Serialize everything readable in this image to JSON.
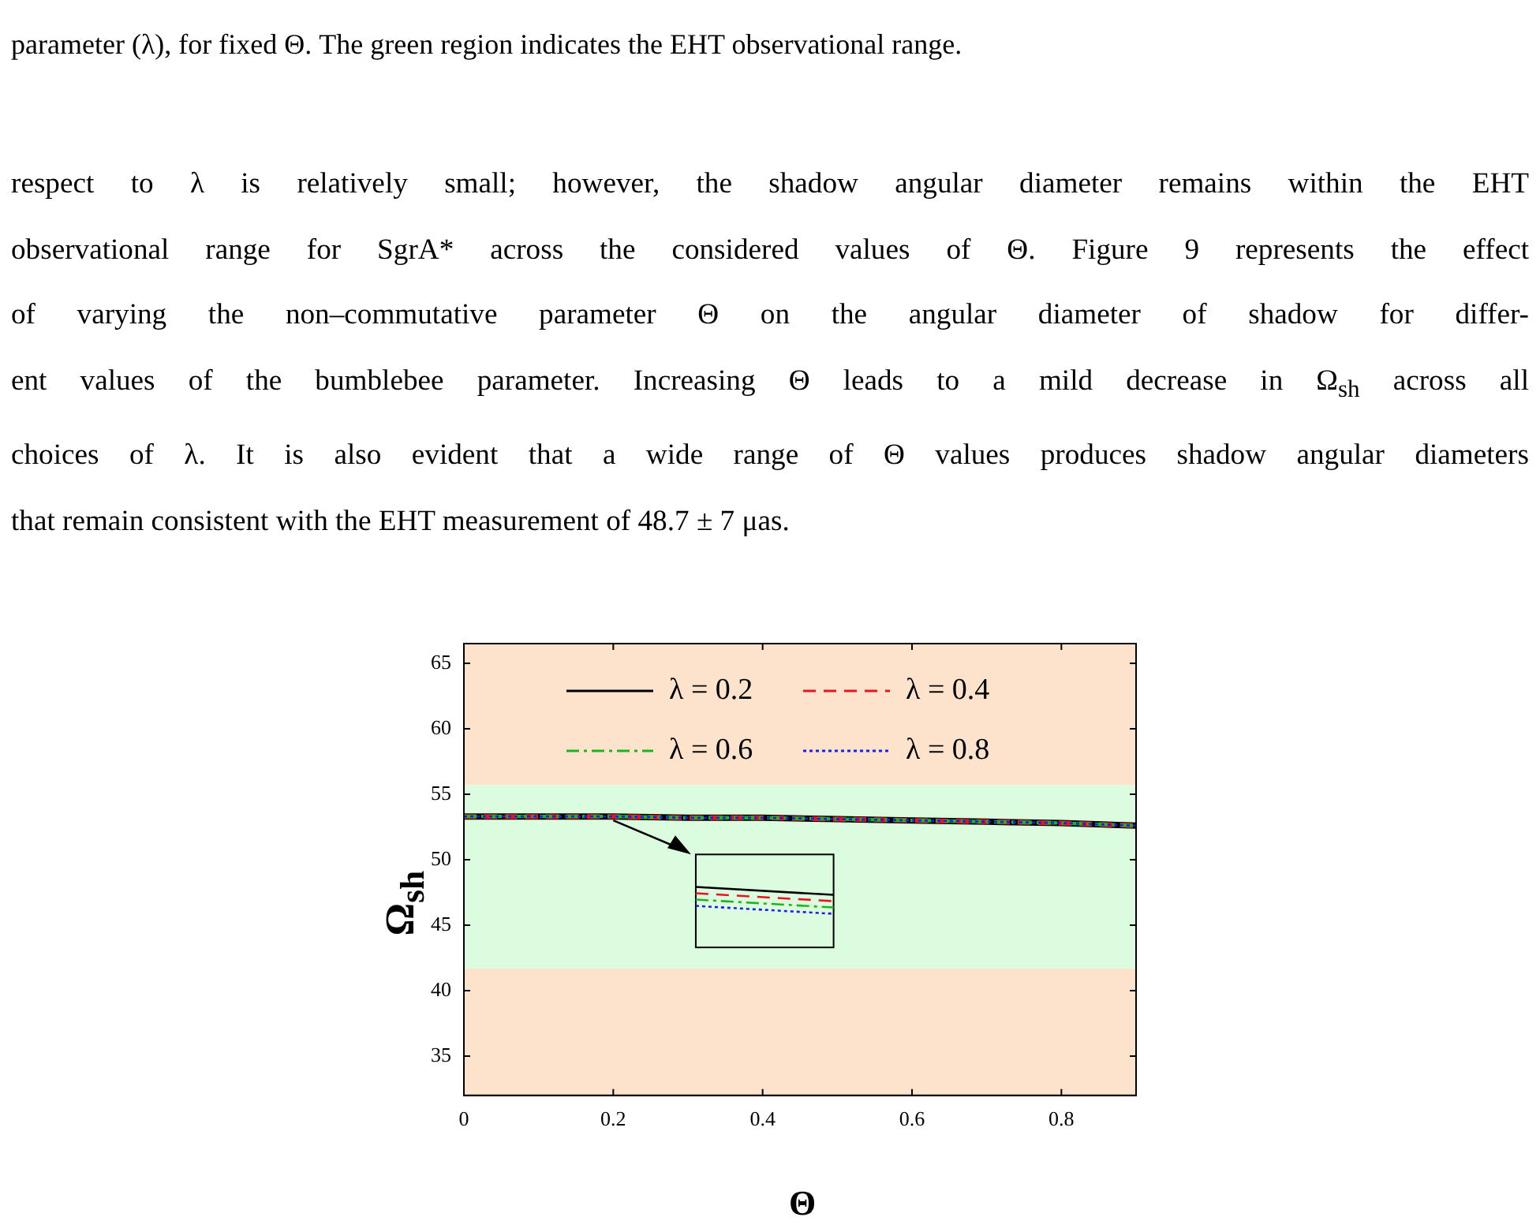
{
  "chart_data": {
    "type": "line",
    "xlabel": "Θ",
    "ylabel": "Ω$_{sh}$",
    "x": [
      0,
      0.1,
      0.2,
      0.3,
      0.4,
      0.5,
      0.6,
      0.7,
      0.8,
      0.9
    ],
    "series": [
      {
        "name": "λ = 0.2",
        "color": "#000000",
        "line_style": "solid",
        "values": [
          53.3,
          53.3,
          53.3,
          53.2,
          53.2,
          53.1,
          53.0,
          52.9,
          52.8,
          52.6
        ]
      },
      {
        "name": "λ = 0.4",
        "color": "#e8141e",
        "line_style": "dashed",
        "values": [
          53.3,
          53.3,
          53.3,
          53.2,
          53.2,
          53.1,
          53.0,
          52.9,
          52.8,
          52.6
        ]
      },
      {
        "name": "λ = 0.6",
        "color": "#1fb41f",
        "line_style": "dashdot",
        "values": [
          53.3,
          53.3,
          53.3,
          53.2,
          53.2,
          53.1,
          53.0,
          52.9,
          52.8,
          52.6
        ]
      },
      {
        "name": "λ = 0.8",
        "color": "#1e1ee6",
        "line_style": "dotted",
        "values": [
          53.3,
          53.3,
          53.3,
          53.2,
          53.2,
          53.1,
          53.0,
          52.9,
          52.8,
          52.6
        ]
      }
    ],
    "xlim": [
      0,
      0.9
    ],
    "xticks": [
      0,
      0.2,
      0.4,
      0.6,
      0.8
    ],
    "ylim": [
      32,
      66.5
    ],
    "yticks": [
      35,
      40,
      45,
      50,
      55,
      60,
      65
    ],
    "bands": [
      {
        "axis": "y",
        "from": 32,
        "to": 41.7,
        "color": "#fde3cc"
      },
      {
        "axis": "y",
        "from": 41.7,
        "to": 55.7,
        "color": "#dcfce0"
      },
      {
        "axis": "y",
        "from": 55.7,
        "to": 66.5,
        "color": "#fde3cc"
      }
    ],
    "legend": "top",
    "marker": "none",
    "grid": false,
    "annotations": [
      "parameter (λ), for fixed Θ. The green region indicates the EHT observational range.",
      "respect to λ is relatively small; however, the shadow angular diameter remains within the EHT",
      "observational range for SgrA* across the considered values of Θ. Figure 9 represents the effect",
      "of varying the non–commutative parameter Θ on the angular diameter of shadow for differ-",
      "ent values of the bumblebee parameter. Increasing Θ leads to a mild decrease in Ω$_{sh}$ across all",
      "choices of λ. It is also evident that a wide range of Θ values produces shadow angular diameters",
      "that remain consistent with the EHT measurement of 48.7 ± 7 μas."
    ]
  }
}
